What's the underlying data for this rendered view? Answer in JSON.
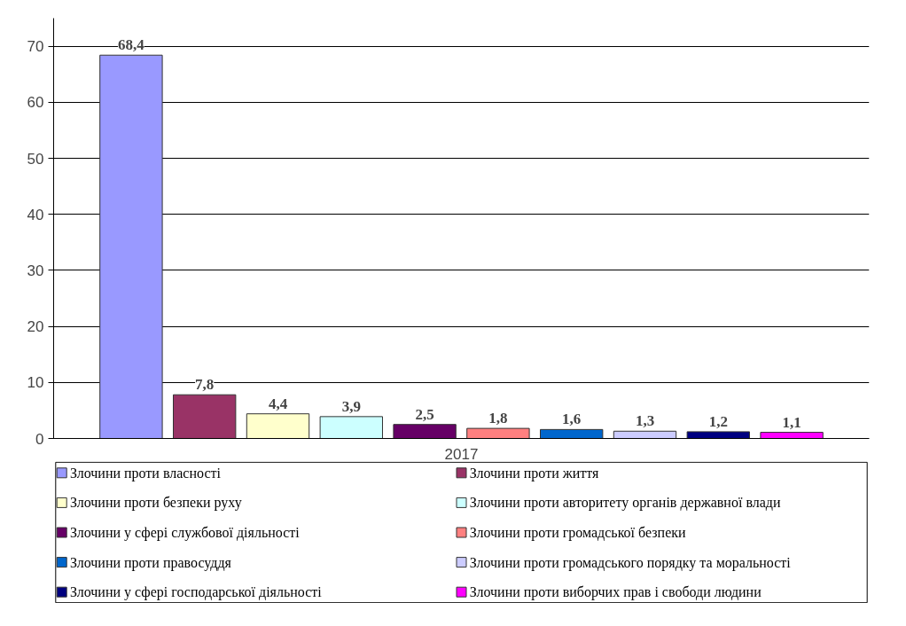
{
  "chart_data": {
    "type": "bar",
    "categories": [
      "2017"
    ],
    "series": [
      {
        "name": "Злочини проти власності",
        "color": "#9999ff",
        "values": [
          68.4
        ],
        "value_labels": [
          "68,4"
        ]
      },
      {
        "name": "Злочини проти життя",
        "color": "#993366",
        "values": [
          7.8
        ],
        "value_labels": [
          "7,8"
        ]
      },
      {
        "name": "Злочини проти безпеки руху",
        "color": "#ffffcc",
        "values": [
          4.4
        ],
        "value_labels": [
          "4,4"
        ]
      },
      {
        "name": "Злочини проти авторитету органів державної влади",
        "color": "#ccffff",
        "values": [
          3.9
        ],
        "value_labels": [
          "3,9"
        ]
      },
      {
        "name": "Злочини у сфері службової діяльності",
        "color": "#660066",
        "values": [
          2.5
        ],
        "value_labels": [
          "2,5"
        ]
      },
      {
        "name": "Злочини проти громадської безпеки",
        "color": "#ff8080",
        "values": [
          1.8
        ],
        "value_labels": [
          "1,8"
        ]
      },
      {
        "name": "Злочини проти правосуддя",
        "color": "#0066cc",
        "values": [
          1.6
        ],
        "value_labels": [
          "1,6"
        ]
      },
      {
        "name": "Злочини проти громадського порядку та моральності",
        "color": "#ccccff",
        "values": [
          1.3
        ],
        "value_labels": [
          "1,3"
        ]
      },
      {
        "name": "Злочини у сфері господарської діяльності",
        "color": "#000080",
        "values": [
          1.2
        ],
        "value_labels": [
          "1,2"
        ]
      },
      {
        "name": "Злочини проти виборчих прав і свободи людини",
        "color": "#ff00ff",
        "values": [
          1.1
        ],
        "value_labels": [
          "1,1"
        ]
      }
    ],
    "ylim": [
      0,
      75
    ],
    "yticks": [
      0,
      10,
      20,
      30,
      40,
      50,
      60,
      70
    ],
    "grid": "y",
    "legend": "bottom"
  }
}
